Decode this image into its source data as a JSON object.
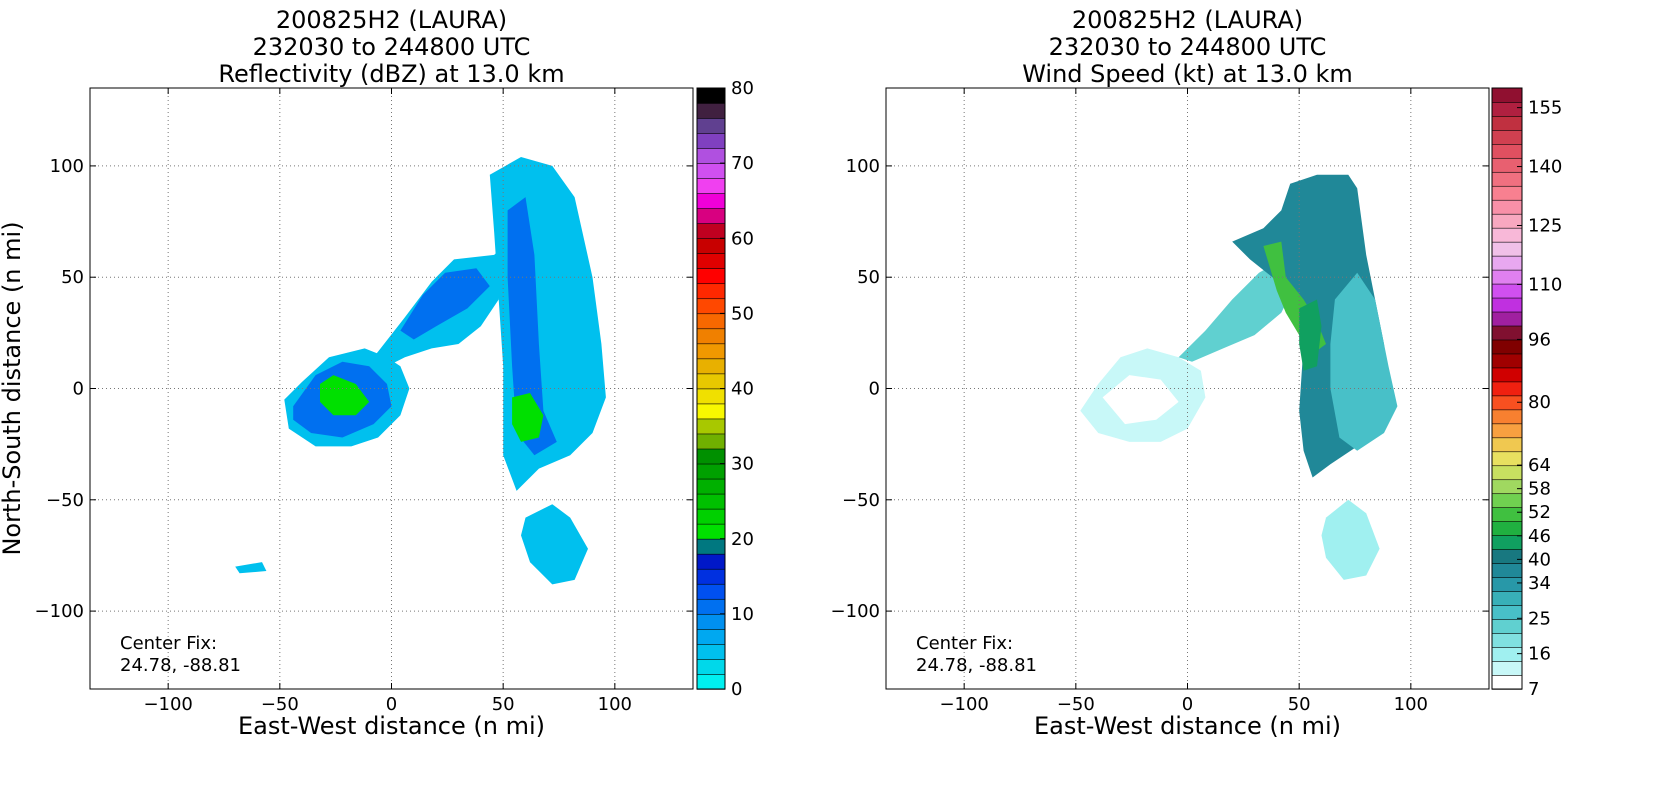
{
  "panels": [
    {
      "title_lines": [
        "200825H2 (LAURA)",
        "232030 to 244800 UTC",
        "Reflectivity (dBZ) at 13.0 km"
      ],
      "xlabel": "East-West distance (n mi)",
      "ylabel": "North-South distance (n mi)",
      "center_fix_label": "Center Fix:",
      "center_fix_value": "24.78, -88.81"
    },
    {
      "title_lines": [
        "200825H2 (LAURA)",
        "232030 to 244800 UTC",
        "Wind Speed (kt) at 13.0 km"
      ],
      "xlabel": "East-West distance (n mi)",
      "ylabel": "North-South distance (n mi)",
      "center_fix_label": "Center Fix:",
      "center_fix_value": "24.78, -88.81"
    }
  ],
  "chart_data": [
    {
      "type": "heatmap",
      "variable": "Reflectivity (dBZ)",
      "xlim": [
        -135,
        135
      ],
      "ylim": [
        -135,
        135
      ],
      "xticks": [
        -100,
        -50,
        0,
        50,
        100
      ],
      "yticks": [
        -100,
        -50,
        0,
        50,
        100
      ],
      "grid": true,
      "colorbar": {
        "min": 0,
        "max": 80,
        "tick_labels": [
          0,
          10,
          20,
          30,
          40,
          50,
          60,
          70,
          80
        ],
        "colors": [
          "#00f0f0",
          "#00d8ea",
          "#00c0ee",
          "#00a8f0",
          "#0090f0",
          "#0070f0",
          "#0050f0",
          "#0030e0",
          "#0018c8",
          "#007880",
          "#00e000",
          "#00d000",
          "#00c000",
          "#00b000",
          "#00a000",
          "#009000",
          "#70b000",
          "#a8c800",
          "#f8f800",
          "#f0e000",
          "#e8c800",
          "#e8b000",
          "#f09800",
          "#f08000",
          "#f86800",
          "#ff4800",
          "#ff2800",
          "#ff0000",
          "#e00000",
          "#c80000",
          "#c00020",
          "#d80080",
          "#f000d8",
          "#f040f0",
          "#d050f0",
          "#b050e0",
          "#8040c0",
          "#604090",
          "#402040",
          "#000000"
        ]
      },
      "regions": [
        {
          "name": "outer-band",
          "value": 5,
          "points": [
            [
              -48,
              -5
            ],
            [
              -40,
              3
            ],
            [
              -28,
              14
            ],
            [
              -12,
              18
            ],
            [
              -2,
              14
            ],
            [
              4,
              10
            ],
            [
              8,
              0
            ],
            [
              4,
              -12
            ],
            [
              -6,
              -22
            ],
            [
              -18,
              -26
            ],
            [
              -34,
              -26
            ],
            [
              -46,
              -18
            ]
          ]
        },
        {
          "name": "outer-band-core",
          "value": 11,
          "points": [
            [
              -44,
              -8
            ],
            [
              -34,
              6
            ],
            [
              -22,
              12
            ],
            [
              -10,
              10
            ],
            [
              -2,
              2
            ],
            [
              0,
              -8
            ],
            [
              -8,
              -16
            ],
            [
              -22,
              -22
            ],
            [
              -36,
              -20
            ],
            [
              -44,
              -14
            ]
          ]
        },
        {
          "name": "outer-band-green",
          "value": 21,
          "points": [
            [
              -32,
              2
            ],
            [
              -26,
              6
            ],
            [
              -16,
              2
            ],
            [
              -10,
              -6
            ],
            [
              -16,
              -12
            ],
            [
              -26,
              -12
            ],
            [
              -32,
              -6
            ]
          ]
        },
        {
          "name": "arm",
          "value": 5,
          "points": [
            [
              -8,
              14
            ],
            [
              6,
              32
            ],
            [
              18,
              48
            ],
            [
              28,
              58
            ],
            [
              46,
              60
            ],
            [
              52,
              66
            ],
            [
              48,
              40
            ],
            [
              40,
              28
            ],
            [
              30,
              20
            ],
            [
              18,
              18
            ],
            [
              6,
              14
            ],
            [
              -2,
              10
            ]
          ]
        },
        {
          "name": "arm-core",
          "value": 11,
          "points": [
            [
              4,
              26
            ],
            [
              14,
              42
            ],
            [
              24,
              52
            ],
            [
              38,
              54
            ],
            [
              44,
              46
            ],
            [
              34,
              36
            ],
            [
              20,
              28
            ],
            [
              10,
              22
            ]
          ]
        },
        {
          "name": "north-band",
          "value": 5,
          "points": [
            [
              44,
              96
            ],
            [
              58,
              104
            ],
            [
              72,
              100
            ],
            [
              82,
              86
            ],
            [
              90,
              50
            ],
            [
              94,
              20
            ],
            [
              96,
              -4
            ],
            [
              90,
              -20
            ],
            [
              80,
              -30
            ],
            [
              66,
              -36
            ],
            [
              56,
              -46
            ],
            [
              50,
              -30
            ],
            [
              50,
              10
            ],
            [
              48,
              40
            ],
            [
              46,
              70
            ]
          ]
        },
        {
          "name": "north-band-core",
          "value": 11,
          "points": [
            [
              52,
              80
            ],
            [
              60,
              86
            ],
            [
              64,
              60
            ],
            [
              66,
              20
            ],
            [
              68,
              -10
            ],
            [
              74,
              -24
            ],
            [
              64,
              -30
            ],
            [
              56,
              -20
            ],
            [
              54,
              10
            ],
            [
              52,
              50
            ]
          ]
        },
        {
          "name": "north-band-green",
          "value": 21,
          "points": [
            [
              54,
              -4
            ],
            [
              62,
              -2
            ],
            [
              68,
              -12
            ],
            [
              66,
              -22
            ],
            [
              58,
              -24
            ],
            [
              54,
              -16
            ]
          ]
        },
        {
          "name": "south-cell",
          "value": 4,
          "points": [
            [
              60,
              -58
            ],
            [
              72,
              -52
            ],
            [
              80,
              -58
            ],
            [
              88,
              -72
            ],
            [
              82,
              -86
            ],
            [
              72,
              -88
            ],
            [
              62,
              -78
            ],
            [
              58,
              -66
            ]
          ]
        },
        {
          "name": "west-speck",
          "value": 4,
          "points": [
            [
              -70,
              -80
            ],
            [
              -58,
              -78
            ],
            [
              -56,
              -82
            ],
            [
              -68,
              -83
            ]
          ]
        }
      ]
    },
    {
      "type": "heatmap",
      "variable": "Wind Speed (kt)",
      "xlim": [
        -135,
        135
      ],
      "ylim": [
        -135,
        135
      ],
      "xticks": [
        -100,
        -50,
        0,
        50,
        100
      ],
      "yticks": [
        -100,
        -50,
        0,
        50,
        100
      ],
      "grid": true,
      "colorbar": {
        "min": 7,
        "max": 160,
        "tick_labels": [
          7,
          16,
          25,
          34,
          40,
          46,
          52,
          58,
          64,
          80,
          96,
          110,
          125,
          140,
          155
        ],
        "colors": [
          "#ffffff",
          "#c8f8f8",
          "#a0f0f0",
          "#80e0e0",
          "#60d0d0",
          "#48c0c8",
          "#38b0b8",
          "#2898a8",
          "#208898",
          "#187880",
          "#10a060",
          "#20b040",
          "#40c040",
          "#70d050",
          "#a0d860",
          "#c8e060",
          "#e8e060",
          "#f0c850",
          "#f8a040",
          "#f88030",
          "#f85020",
          "#f02010",
          "#d00000",
          "#a00000",
          "#800000",
          "#801030",
          "#a020a0",
          "#c030e0",
          "#d050f0",
          "#e080f0",
          "#e8a8f0",
          "#f0c0e8",
          "#f8b8d8",
          "#f8a8c0",
          "#f890a8",
          "#f88090",
          "#f07080",
          "#e86070",
          "#e05060",
          "#d04050",
          "#c03040",
          "#b02040",
          "#901030"
        ]
      },
      "regions": [
        {
          "name": "outer-band",
          "value": 14,
          "points": [
            [
              -48,
              -10
            ],
            [
              -40,
              2
            ],
            [
              -30,
              14
            ],
            [
              -18,
              18
            ],
            [
              -4,
              14
            ],
            [
              6,
              8
            ],
            [
              8,
              -4
            ],
            [
              0,
              -18
            ],
            [
              -12,
              -24
            ],
            [
              -26,
              -24
            ],
            [
              -40,
              -20
            ]
          ]
        },
        {
          "name": "outer-band-light",
          "value": 9,
          "points": [
            [
              -38,
              -4
            ],
            [
              -26,
              6
            ],
            [
              -12,
              4
            ],
            [
              -4,
              -6
            ],
            [
              -14,
              -14
            ],
            [
              -28,
              -16
            ]
          ]
        },
        {
          "name": "arm",
          "value": 24,
          "points": [
            [
              -4,
              14
            ],
            [
              8,
              26
            ],
            [
              20,
              40
            ],
            [
              32,
              52
            ],
            [
              46,
              60
            ],
            [
              50,
              50
            ],
            [
              42,
              34
            ],
            [
              30,
              24
            ],
            [
              16,
              18
            ],
            [
              2,
              12
            ]
          ]
        },
        {
          "name": "north-band",
          "value": 36,
          "points": [
            [
              42,
              80
            ],
            [
              46,
              92
            ],
            [
              58,
              96
            ],
            [
              72,
              96
            ],
            [
              76,
              90
            ],
            [
              80,
              60
            ],
            [
              84,
              40
            ],
            [
              88,
              20
            ],
            [
              90,
              0
            ],
            [
              86,
              -14
            ],
            [
              76,
              -26
            ],
            [
              64,
              -34
            ],
            [
              56,
              -40
            ],
            [
              52,
              -28
            ],
            [
              50,
              -10
            ],
            [
              52,
              20
            ],
            [
              48,
              40
            ],
            [
              38,
              50
            ],
            [
              28,
              58
            ],
            [
              20,
              66
            ],
            [
              34,
              72
            ]
          ]
        },
        {
          "name": "north-band-teal",
          "value": 26,
          "points": [
            [
              66,
              40
            ],
            [
              76,
              52
            ],
            [
              84,
              40
            ],
            [
              90,
              10
            ],
            [
              94,
              -8
            ],
            [
              88,
              -20
            ],
            [
              76,
              -28
            ],
            [
              68,
              -22
            ],
            [
              64,
              0
            ],
            [
              64,
              20
            ]
          ]
        },
        {
          "name": "max-wind",
          "value": 52,
          "points": [
            [
              34,
              64
            ],
            [
              42,
              66
            ],
            [
              44,
              50
            ],
            [
              52,
              40
            ],
            [
              58,
              30
            ],
            [
              62,
              20
            ],
            [
              54,
              14
            ],
            [
              50,
              24
            ],
            [
              44,
              34
            ],
            [
              40,
              44
            ]
          ]
        },
        {
          "name": "inner-orange",
          "value": 46,
          "points": [
            [
              50,
              36
            ],
            [
              58,
              40
            ],
            [
              60,
              28
            ],
            [
              58,
              10
            ],
            [
              52,
              8
            ],
            [
              50,
              20
            ]
          ]
        },
        {
          "name": "south-cell",
          "value": 16,
          "points": [
            [
              62,
              -58
            ],
            [
              72,
              -50
            ],
            [
              80,
              -56
            ],
            [
              86,
              -72
            ],
            [
              80,
              -84
            ],
            [
              70,
              -86
            ],
            [
              62,
              -76
            ],
            [
              60,
              -66
            ]
          ]
        },
        {
          "name": "west-speck",
          "value": 8,
          "points": [
            [
              -66,
              -80
            ],
            [
              -60,
              -78
            ],
            [
              -59,
              -81
            ],
            [
              -64,
              -82
            ]
          ]
        }
      ]
    }
  ]
}
